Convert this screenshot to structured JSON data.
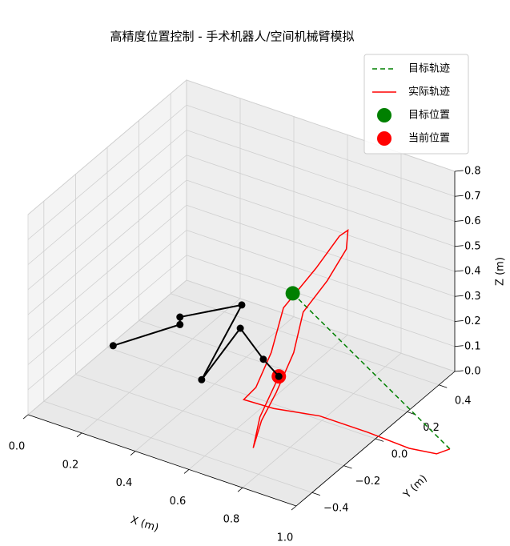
{
  "chart_data": {
    "type": "line3d",
    "title": "高精度位置控制 - 手术机器人/空间机械臂模拟",
    "xlabel": "X (m)",
    "ylabel": "Y (m)",
    "zlabel": "Z (m)",
    "xlim": [
      0,
      1
    ],
    "ylim": [
      -0.5,
      0.5
    ],
    "zlim": [
      0,
      0.8
    ],
    "xticks": [
      {
        "value": 0,
        "label": "0.0"
      },
      0.2,
      0.4,
      0.6,
      0.8,
      {
        "value": 1,
        "label": "1.0"
      }
    ],
    "yticks": [
      {
        "value": -0.4,
        "label": "−0.4"
      },
      {
        "value": -0.2,
        "label": "−0.2"
      },
      {
        "value": 0,
        "label": "0.0"
      },
      0.2,
      0.4
    ],
    "zticks": [
      {
        "value": 0,
        "label": "0.0"
      },
      0.1,
      0.2,
      0.3,
      0.4,
      0.5,
      0.6,
      0.7,
      0.8
    ],
    "grid": true,
    "legend": "upper right",
    "series": [
      {
        "name": "目标轨迹",
        "color": "#008000",
        "linestyle": "dashed",
        "marker": false,
        "x": [
          1.23,
          0.52
        ],
        "y": [
          0.08,
          0.29
        ],
        "z": [
          0,
          0.25
        ]
      },
      {
        "name": "实际轨迹",
        "color": "#ff0000",
        "linestyle": "solid",
        "marker": false,
        "x": [
          1.23,
          1.21,
          1.12,
          0.96,
          0.78,
          0.65,
          0.55,
          0.56,
          0.57,
          0.58,
          0.66,
          0.7,
          0.72,
          0.72,
          0.69,
          0.63,
          0.63,
          0.63,
          0.64,
          0.68,
          0.64,
          0.61
        ],
        "y": [
          0.08,
          0.03,
          0.01,
          0.02,
          0.02,
          -0.05,
          -0.07,
          -0.01,
          0.07,
          0.13,
          0.2,
          0.28,
          0.3,
          0.29,
          0.22,
          0.17,
          0.11,
          0,
          -0.11,
          -0.23,
          -0.12,
          0.05
        ],
        "z": [
          0,
          0,
          0,
          0,
          0,
          0.02,
          0.03,
          0.05,
          0.15,
          0.3,
          0.45,
          0.55,
          0.57,
          0.5,
          0.4,
          0.28,
          0.15,
          0.05,
          0,
          -0.03,
          0.02,
          0.08
        ]
      },
      {
        "name": "目标位置",
        "color": "#008000",
        "linestyle": "none",
        "marker": true,
        "x": [
          0.52
        ],
        "y": [
          0.29
        ],
        "z": [
          0.25
        ]
      },
      {
        "name": "当前位置",
        "color": "#ff0000",
        "linestyle": "none",
        "marker": true,
        "x": [
          0.61
        ],
        "y": [
          0.05
        ],
        "z": [
          0.08
        ]
      },
      {
        "color": "#000000",
        "linestyle": "solid",
        "marker": true,
        "x": [
          0.01,
          0.2,
          0.2,
          0.46,
          0.47,
          0.49,
          0.57,
          0.61
        ],
        "y": [
          0.02,
          0.12,
          0.12,
          0.07,
          -0.2,
          0.01,
          0.02,
          0.05
        ],
        "z": [
          0,
          0.1,
          0.13,
          0.3,
          0.15,
          0.25,
          0.15,
          0.08
        ]
      }
    ]
  }
}
